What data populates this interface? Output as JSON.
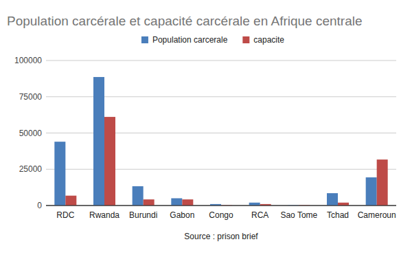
{
  "chart_data": {
    "type": "bar",
    "title": "Population carcérale et capacité carcérale en Afrique centrale",
    "x_label": "Source : prison brief",
    "categories": [
      "RDC",
      "Rwanda",
      "Burundi",
      "Gabon",
      "Congo",
      "RCA",
      "Sao Tome",
      "Tchad",
      "Cameroun"
    ],
    "series": [
      {
        "name": "Population carcerale",
        "color": "#4a7ebb",
        "values": [
          44000,
          88600,
          13300,
          5000,
          1000,
          2000,
          200,
          8500,
          19400
        ]
      },
      {
        "name": "capacite",
        "color": "#be4b48",
        "values": [
          6800,
          61100,
          4200,
          4200,
          200,
          1000,
          250,
          2000,
          31700
        ]
      }
    ],
    "ylim": [
      0,
      100000
    ],
    "yticks": [
      0,
      25000,
      50000,
      75000,
      100000
    ],
    "grid": true,
    "legend": "top"
  }
}
